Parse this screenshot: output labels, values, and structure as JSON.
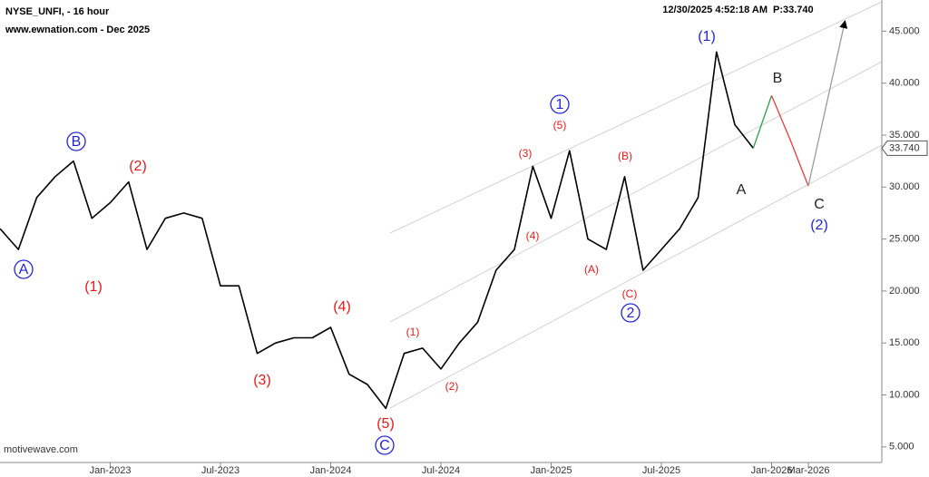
{
  "header": {
    "symbol": "NYSE_UNFI, - 16 hour",
    "source": "www.ewnation.com  - Dec 2025",
    "timestamp": "12/30/2025 4:52:18 AM",
    "price_text": "P:33.740",
    "footer": "motivewave.com"
  },
  "chart_data": {
    "type": "line",
    "xlim": [
      "2022-07",
      "2026-07"
    ],
    "xticks": [
      {
        "value": "2023-01",
        "label": "Jan-2023"
      },
      {
        "value": "2023-07",
        "label": "Jul-2023"
      },
      {
        "value": "2024-01",
        "label": "Jan-2024"
      },
      {
        "value": "2024-07",
        "label": "Jul-2024"
      },
      {
        "value": "2025-01",
        "label": "Jan-2025"
      },
      {
        "value": "2025-07",
        "label": "Jul-2025"
      },
      {
        "value": "2026-01",
        "label": "Jan-2026"
      },
      {
        "value": "2026-03",
        "label": "Mar-2026"
      }
    ],
    "ylim": [
      3.5,
      48
    ],
    "yticks": [
      {
        "value": 5,
        "label": "5.000"
      },
      {
        "value": 10,
        "label": "10.000"
      },
      {
        "value": 15,
        "label": "15.000"
      },
      {
        "value": 20,
        "label": "20.000"
      },
      {
        "value": 25,
        "label": "25.000"
      },
      {
        "value": 30,
        "label": "30.000"
      },
      {
        "value": 35,
        "label": "35.000"
      },
      {
        "value": 40,
        "label": "40.000"
      },
      {
        "value": 45,
        "label": "45.000"
      }
    ],
    "last_price": {
      "value": 33.74,
      "label": "33.740"
    },
    "series": [
      {
        "color": "#000000",
        "x": [
          "2022-07",
          "2022-08",
          "2022-09",
          "2022-10",
          "2022-11",
          "2022-12",
          "2023-01",
          "2023-02",
          "2023-03",
          "2023-04",
          "2023-05",
          "2023-06",
          "2023-07",
          "2023-08",
          "2023-09",
          "2023-10",
          "2023-11",
          "2023-12",
          "2024-01",
          "2024-02",
          "2024-03",
          "2024-04",
          "2024-05",
          "2024-06",
          "2024-07",
          "2024-08",
          "2024-09",
          "2024-10",
          "2024-11",
          "2024-12",
          "2025-01",
          "2025-02",
          "2025-03",
          "2025-04",
          "2025-05",
          "2025-06",
          "2025-07",
          "2025-08",
          "2025-09",
          "2025-10",
          "2025-11",
          "2025-12"
        ],
        "values": [
          26,
          24,
          29,
          31,
          32.5,
          27,
          28.5,
          30.5,
          24,
          27,
          27.5,
          27,
          20.5,
          20.5,
          14,
          15,
          15.5,
          15.5,
          16.5,
          12,
          11,
          8.7,
          14,
          14.5,
          12.5,
          15,
          17,
          22,
          24,
          32,
          27,
          33.5,
          25,
          24,
          31,
          22,
          24,
          26,
          29,
          43,
          36,
          33.74
        ]
      },
      {
        "color": "#2e9e4a",
        "x": [
          "2025-12",
          "2026-01"
        ],
        "values": [
          33.74,
          38.8
        ]
      },
      {
        "color": "#e83c3c",
        "x": [
          "2026-01",
          "2026-02",
          "2026-03"
        ],
        "values": [
          38.8,
          34.6,
          30.1
        ]
      },
      {
        "color": "#9a9a9a",
        "arrow": true,
        "x": [
          "2026-03",
          "2026-05"
        ],
        "values": [
          30.1,
          46
        ]
      }
    ],
    "annotations": [
      {
        "text": "A",
        "color": "#2424d6",
        "circled": true
      },
      {
        "text": "B",
        "color": "#2424d6",
        "circled": true
      },
      {
        "text": "(2)",
        "color": "#e41a1a"
      },
      {
        "text": "(1)",
        "color": "#e41a1a"
      },
      {
        "text": "(3)",
        "color": "#e41a1a"
      },
      {
        "text": "(4)",
        "color": "#e41a1a"
      },
      {
        "text": "(5)",
        "color": "#e41a1a"
      },
      {
        "text": "C",
        "color": "#2424d6",
        "circled": true
      },
      {
        "text": "(1)",
        "color": "#e41a1a"
      },
      {
        "text": "(2)",
        "color": "#e41a1a"
      },
      {
        "text": "(3)",
        "color": "#e41a1a"
      },
      {
        "text": "(4)",
        "color": "#e41a1a"
      },
      {
        "text": "(5)",
        "color": "#e41a1a"
      },
      {
        "text": "1",
        "color": "#2424d6",
        "circled": true
      },
      {
        "text": "(B)",
        "color": "#e41a1a"
      },
      {
        "text": "(A)",
        "color": "#e41a1a"
      },
      {
        "text": "(C)",
        "color": "#e41a1a"
      },
      {
        "text": "2",
        "color": "#2424d6",
        "circled": true
      },
      {
        "text": "(1)",
        "color": "#2424d6"
      },
      {
        "text": "A",
        "color": "#222222"
      },
      {
        "text": "B",
        "color": "#222222"
      },
      {
        "text": "C",
        "color": "#222222"
      },
      {
        "text": "(2)",
        "color": "#2424d6"
      }
    ]
  }
}
